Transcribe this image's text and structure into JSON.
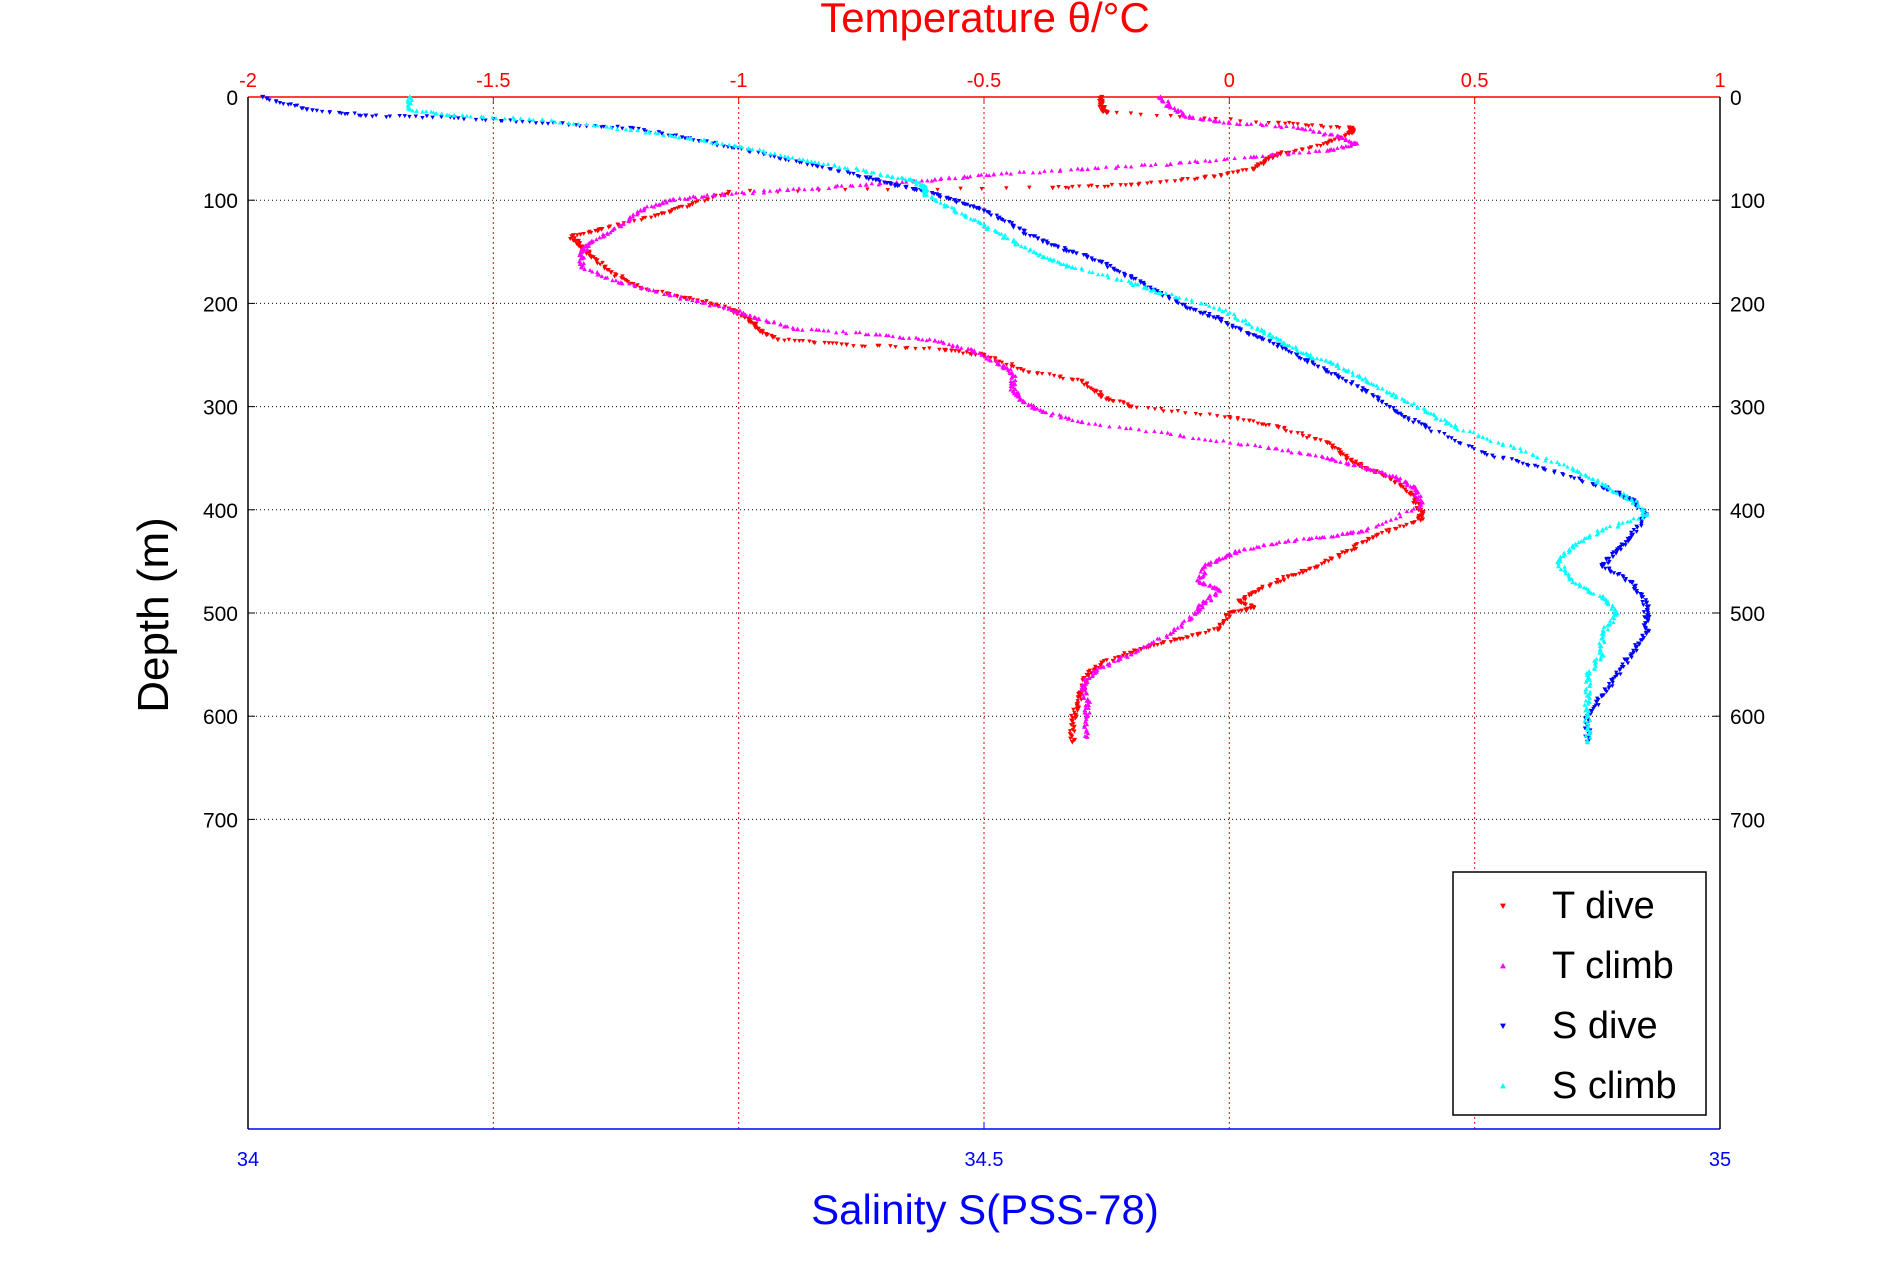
{
  "chart_data": {
    "type": "scatter",
    "title_top": "Temperature θ/°C",
    "xlabel_bottom": "Salinity S(PSS-78)",
    "ylabel": "Depth (m)",
    "x_top_range": [
      -2,
      1
    ],
    "x_top_ticks": [
      "-2",
      "-1.5",
      "-1",
      "-0.5",
      "0",
      "0.5",
      "1"
    ],
    "x_bottom_range": [
      34,
      35
    ],
    "x_bottom_ticks": [
      "34",
      "34.5",
      "35"
    ],
    "y_range": [
      0,
      1000
    ],
    "y_reversed": true,
    "y_ticks": [
      "0",
      "100",
      "200",
      "300",
      "400",
      "500",
      "600",
      "700"
    ],
    "grid": true,
    "legend_position": "bottom-right",
    "colors": {
      "top_axis": "#ff0000",
      "bottom_axis": "#0000ff",
      "grid_x": "#ff0000",
      "grid_y": "#000000"
    },
    "series": [
      {
        "name": "T dive",
        "axis": "top",
        "color": "#ff0000",
        "marker": "triangle-down",
        "points": [
          [
            -0.26,
            0
          ],
          [
            -0.26,
            10
          ],
          [
            -0.25,
            15
          ],
          [
            0.1,
            25
          ],
          [
            0.25,
            30
          ],
          [
            0.25,
            35
          ],
          [
            0.2,
            45
          ],
          [
            0.1,
            55
          ],
          [
            0.08,
            60
          ],
          [
            0.05,
            70
          ],
          [
            -0.05,
            78
          ],
          [
            -0.2,
            85
          ],
          [
            -0.36,
            88
          ],
          [
            -1.02,
            92
          ],
          [
            -1.1,
            105
          ],
          [
            -1.17,
            115
          ],
          [
            -1.28,
            128
          ],
          [
            -1.34,
            135
          ],
          [
            -1.32,
            145
          ],
          [
            -1.3,
            155
          ],
          [
            -1.26,
            170
          ],
          [
            -1.2,
            185
          ],
          [
            -1.1,
            195
          ],
          [
            -1.02,
            205
          ],
          [
            -0.98,
            215
          ],
          [
            -0.96,
            225
          ],
          [
            -0.92,
            235
          ],
          [
            -0.78,
            240
          ],
          [
            -0.58,
            245
          ],
          [
            -0.5,
            250
          ],
          [
            -0.42,
            265
          ],
          [
            -0.3,
            275
          ],
          [
            -0.26,
            290
          ],
          [
            -0.2,
            300
          ],
          [
            0.0,
            310
          ],
          [
            0.1,
            320
          ],
          [
            0.2,
            335
          ],
          [
            0.24,
            350
          ],
          [
            0.28,
            360
          ],
          [
            0.33,
            370
          ],
          [
            0.37,
            385
          ],
          [
            0.39,
            400
          ],
          [
            0.39,
            410
          ],
          [
            0.3,
            425
          ],
          [
            0.24,
            440
          ],
          [
            0.18,
            455
          ],
          [
            0.12,
            465
          ],
          [
            0.06,
            478
          ],
          [
            0.02,
            488
          ],
          [
            0.05,
            495
          ],
          [
            0.0,
            500
          ],
          [
            -0.02,
            515
          ],
          [
            -0.1,
            525
          ],
          [
            -0.18,
            535
          ],
          [
            -0.26,
            548
          ],
          [
            -0.29,
            560
          ],
          [
            -0.3,
            575
          ],
          [
            -0.31,
            590
          ],
          [
            -0.32,
            605
          ],
          [
            -0.32,
            625
          ]
        ]
      },
      {
        "name": "T climb",
        "axis": "top",
        "color": "#ff00ff",
        "marker": "triangle-up",
        "points": [
          [
            -0.14,
            0
          ],
          [
            -0.12,
            10
          ],
          [
            -0.08,
            20
          ],
          [
            0.0,
            25
          ],
          [
            0.14,
            30
          ],
          [
            0.22,
            38
          ],
          [
            0.26,
            45
          ],
          [
            0.2,
            52
          ],
          [
            0.05,
            58
          ],
          [
            -0.12,
            65
          ],
          [
            -0.3,
            70
          ],
          [
            -0.48,
            75
          ],
          [
            -0.6,
            80
          ],
          [
            -0.74,
            85
          ],
          [
            -0.9,
            90
          ],
          [
            -1.05,
            95
          ],
          [
            -1.14,
            100
          ],
          [
            -1.2,
            110
          ],
          [
            -1.24,
            125
          ],
          [
            -1.3,
            140
          ],
          [
            -1.32,
            150
          ],
          [
            -1.32,
            165
          ],
          [
            -1.24,
            180
          ],
          [
            -1.14,
            192
          ],
          [
            -1.02,
            205
          ],
          [
            -0.96,
            215
          ],
          [
            -0.88,
            225
          ],
          [
            -0.72,
            230
          ],
          [
            -0.6,
            236
          ],
          [
            -0.52,
            246
          ],
          [
            -0.46,
            260
          ],
          [
            -0.44,
            270
          ],
          [
            -0.44,
            285
          ],
          [
            -0.42,
            295
          ],
          [
            -0.38,
            305
          ],
          [
            -0.3,
            315
          ],
          [
            -0.1,
            328
          ],
          [
            0.08,
            340
          ],
          [
            0.2,
            350
          ],
          [
            0.28,
            360
          ],
          [
            0.34,
            368
          ],
          [
            0.38,
            380
          ],
          [
            0.39,
            395
          ],
          [
            0.28,
            420
          ],
          [
            0.22,
            425
          ],
          [
            0.12,
            430
          ],
          [
            0.02,
            440
          ],
          [
            -0.02,
            448
          ],
          [
            -0.05,
            455
          ],
          [
            -0.06,
            470
          ],
          [
            -0.02,
            478
          ],
          [
            -0.05,
            490
          ],
          [
            -0.07,
            500
          ],
          [
            -0.12,
            520
          ],
          [
            -0.2,
            540
          ],
          [
            -0.27,
            555
          ],
          [
            -0.3,
            570
          ],
          [
            -0.29,
            585
          ],
          [
            -0.29,
            600
          ],
          [
            -0.29,
            620
          ]
        ]
      },
      {
        "name": "S dive",
        "axis": "bottom",
        "color": "#0000ff",
        "marker": "triangle-down",
        "points": [
          [
            34.01,
            0
          ],
          [
            34.04,
            12
          ],
          [
            34.08,
            18
          ],
          [
            34.14,
            20
          ],
          [
            34.2,
            25
          ],
          [
            34.26,
            30
          ],
          [
            34.3,
            40
          ],
          [
            34.34,
            52
          ],
          [
            34.38,
            65
          ],
          [
            34.42,
            78
          ],
          [
            34.44,
            85
          ],
          [
            34.46,
            92
          ],
          [
            34.48,
            100
          ],
          [
            34.5,
            110
          ],
          [
            34.52,
            125
          ],
          [
            34.54,
            140
          ],
          [
            34.56,
            150
          ],
          [
            34.58,
            160
          ],
          [
            34.6,
            175
          ],
          [
            34.62,
            190
          ],
          [
            34.64,
            205
          ],
          [
            34.66,
            215
          ],
          [
            34.68,
            230
          ],
          [
            34.7,
            240
          ],
          [
            34.72,
            255
          ],
          [
            34.74,
            270
          ],
          [
            34.76,
            285
          ],
          [
            34.78,
            305
          ],
          [
            34.8,
            320
          ],
          [
            34.84,
            345
          ],
          [
            34.88,
            360
          ],
          [
            34.92,
            378
          ],
          [
            34.94,
            390
          ],
          [
            34.95,
            405
          ],
          [
            34.94,
            425
          ],
          [
            34.93,
            440
          ],
          [
            34.92,
            455
          ],
          [
            34.94,
            470
          ],
          [
            34.95,
            490
          ],
          [
            34.95,
            505
          ],
          [
            34.95,
            520
          ],
          [
            34.94,
            540
          ],
          [
            34.93,
            560
          ],
          [
            34.92,
            580
          ],
          [
            34.91,
            600
          ],
          [
            34.91,
            625
          ]
        ]
      },
      {
        "name": "S climb",
        "axis": "bottom",
        "color": "#00ffff",
        "marker": "triangle-up",
        "points": [
          [
            34.11,
            0
          ],
          [
            34.11,
            12
          ],
          [
            34.14,
            18
          ],
          [
            34.2,
            22
          ],
          [
            34.26,
            32
          ],
          [
            34.3,
            40
          ],
          [
            34.34,
            50
          ],
          [
            34.38,
            62
          ],
          [
            34.42,
            72
          ],
          [
            34.45,
            80
          ],
          [
            34.46,
            88
          ],
          [
            34.46,
            95
          ],
          [
            34.48,
            110
          ],
          [
            34.5,
            125
          ],
          [
            34.52,
            140
          ],
          [
            34.54,
            155
          ],
          [
            34.56,
            165
          ],
          [
            34.6,
            180
          ],
          [
            34.62,
            190
          ],
          [
            34.66,
            205
          ],
          [
            34.68,
            220
          ],
          [
            34.7,
            235
          ],
          [
            34.72,
            250
          ],
          [
            34.74,
            260
          ],
          [
            34.76,
            275
          ],
          [
            34.78,
            290
          ],
          [
            34.8,
            305
          ],
          [
            34.82,
            320
          ],
          [
            34.86,
            340
          ],
          [
            34.9,
            360
          ],
          [
            34.92,
            375
          ],
          [
            34.94,
            390
          ],
          [
            34.95,
            405
          ],
          [
            34.92,
            420
          ],
          [
            34.9,
            435
          ],
          [
            34.89,
            450
          ],
          [
            34.9,
            470
          ],
          [
            34.92,
            485
          ],
          [
            34.93,
            500
          ],
          [
            34.92,
            520
          ],
          [
            34.92,
            540
          ],
          [
            34.91,
            560
          ],
          [
            34.91,
            580
          ],
          [
            34.91,
            600
          ],
          [
            34.91,
            625
          ]
        ]
      }
    ]
  }
}
